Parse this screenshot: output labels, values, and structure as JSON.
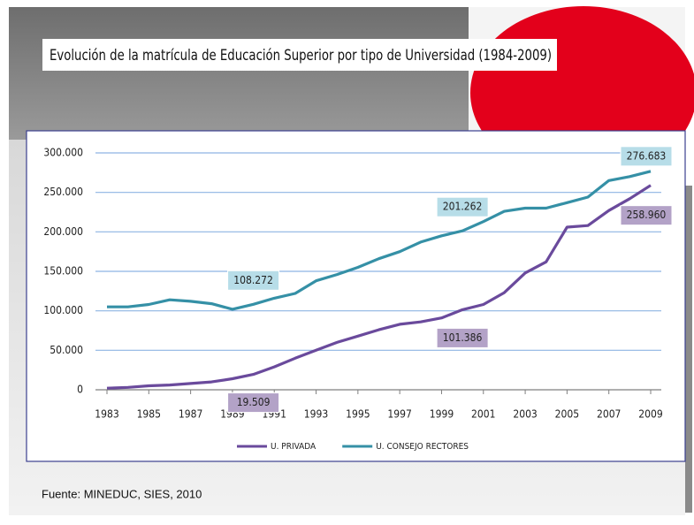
{
  "chart_data": {
    "type": "line",
    "title": "Evolución de la matrícula de Educación Superior por tipo de Universidad (1984-2009)",
    "source": "Fuente: MINEDUC, SIES, 2010",
    "x": [
      1983,
      1984,
      1985,
      1986,
      1987,
      1988,
      1989,
      1990,
      1991,
      1992,
      1993,
      1994,
      1995,
      1996,
      1997,
      1998,
      1999,
      2000,
      2001,
      2002,
      2003,
      2004,
      2005,
      2006,
      2007,
      2008,
      2009
    ],
    "xlim": [
      1983,
      2009
    ],
    "xticks": [
      1983,
      1985,
      1987,
      1989,
      1991,
      1993,
      1995,
      1997,
      1999,
      2001,
      2003,
      2005,
      2007,
      2009
    ],
    "ylim": [
      0,
      300000
    ],
    "yticks": [
      0,
      {
        "value": 50000,
        "label": "50.000"
      },
      {
        "value": 100000,
        "label": "100.000"
      },
      {
        "value": 150000,
        "label": "150.000"
      },
      {
        "value": 200000,
        "label": "200.000"
      },
      {
        "value": 250000,
        "label": "250.000"
      },
      {
        "value": 300000,
        "label": "300.000"
      }
    ],
    "grid": true,
    "legend": "bottom",
    "series": [
      {
        "name": "U. PRIVADA",
        "color": "#6a4a9c",
        "values": [
          2000,
          3000,
          5000,
          6000,
          8000,
          10000,
          14000,
          19509,
          29000,
          40000,
          50000,
          60000,
          68000,
          76000,
          83000,
          86000,
          91000,
          101386,
          108000,
          123000,
          148000,
          162000,
          206000,
          208000,
          227000,
          242000,
          258960
        ],
        "value_labels": [
          null,
          null,
          null,
          null,
          null,
          null,
          null,
          "19.509",
          null,
          null,
          null,
          null,
          null,
          null,
          null,
          null,
          null,
          "101.386",
          null,
          null,
          null,
          null,
          null,
          null,
          null,
          null,
          "258.960"
        ]
      },
      {
        "name": "U. CONSEJO RECTORES",
        "color": "#3590a6",
        "values": [
          105000,
          105000,
          108000,
          114000,
          112000,
          109000,
          102000,
          108272,
          116000,
          122000,
          138000,
          146000,
          155000,
          166000,
          175000,
          187000,
          195000,
          201262,
          213000,
          226000,
          230000,
          230000,
          237000,
          244000,
          265000,
          270000,
          276683
        ],
        "value_labels": [
          null,
          null,
          null,
          null,
          null,
          null,
          null,
          "108.272",
          null,
          null,
          null,
          null,
          null,
          null,
          null,
          null,
          null,
          "201.262",
          null,
          null,
          null,
          null,
          null,
          null,
          null,
          null,
          "276.683"
        ]
      }
    ]
  }
}
